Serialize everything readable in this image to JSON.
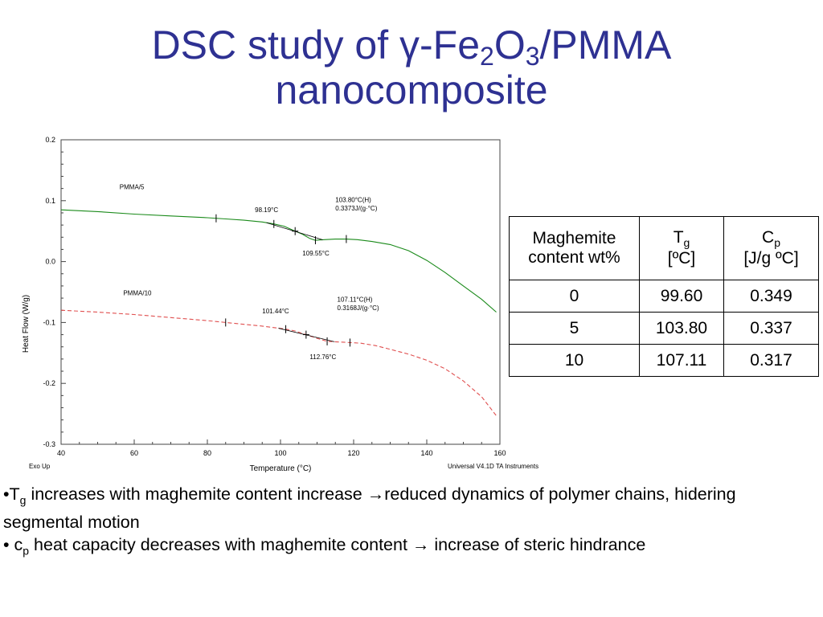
{
  "slide": {
    "title_parts": [
      "DSC study of γ-Fe",
      "2",
      "O",
      "3",
      "/PMMA",
      "nanocomposite"
    ]
  },
  "chart_data": {
    "type": "line",
    "xlabel": "Temperature (°C)",
    "ylabel": "Heat Flow (W/g)",
    "xlim": [
      40,
      160
    ],
    "ylim": [
      -0.3,
      0.2
    ],
    "x_ticks": [
      40,
      60,
      80,
      100,
      120,
      140,
      160
    ],
    "y_ticks": [
      0.2,
      0.1,
      0.0,
      -0.1,
      -0.2,
      -0.3
    ],
    "x_tick_labels": [
      "40",
      "60",
      "80",
      "100",
      "120",
      "140",
      "160"
    ],
    "y_tick_labels": [
      "0.2",
      "0.1",
      "0.0",
      "-0.1",
      "-0.2",
      "-0.3"
    ],
    "grid": false,
    "footer_left": "Exo Up",
    "footer_right": "Universal V4.1D TA Instruments",
    "series": [
      {
        "name": "PMMA/5",
        "color": "#1a8a1a",
        "style": "solid",
        "points": [
          [
            40,
            0.085
          ],
          [
            50,
            0.082
          ],
          [
            60,
            0.078
          ],
          [
            70,
            0.075
          ],
          [
            80,
            0.072
          ],
          [
            85,
            0.07
          ],
          [
            90,
            0.068
          ],
          [
            95,
            0.065
          ],
          [
            98,
            0.062
          ],
          [
            101,
            0.058
          ],
          [
            104,
            0.05
          ],
          [
            106,
            0.045
          ],
          [
            108,
            0.038
          ],
          [
            109.5,
            0.035
          ],
          [
            112,
            0.036
          ],
          [
            115,
            0.037
          ],
          [
            118,
            0.037
          ],
          [
            121,
            0.036
          ],
          [
            125,
            0.033
          ],
          [
            130,
            0.028
          ],
          [
            135,
            0.018
          ],
          [
            140,
            0.002
          ],
          [
            145,
            -0.018
          ],
          [
            150,
            -0.04
          ],
          [
            155,
            -0.062
          ],
          [
            159,
            -0.083
          ]
        ],
        "markers": [
          82.4,
          98.19,
          104,
          109.55,
          118
        ]
      },
      {
        "name": "PMMA/10",
        "color": "#e05050",
        "style": "dashed",
        "points": [
          [
            40,
            -0.08
          ],
          [
            50,
            -0.083
          ],
          [
            60,
            -0.087
          ],
          [
            70,
            -0.092
          ],
          [
            80,
            -0.097
          ],
          [
            85,
            -0.1
          ],
          [
            90,
            -0.103
          ],
          [
            95,
            -0.106
          ],
          [
            101.44,
            -0.111
          ],
          [
            104,
            -0.114
          ],
          [
            107,
            -0.12
          ],
          [
            110,
            -0.126
          ],
          [
            112.76,
            -0.131
          ],
          [
            116,
            -0.132
          ],
          [
            119,
            -0.133
          ],
          [
            122,
            -0.134
          ],
          [
            126,
            -0.138
          ],
          [
            130,
            -0.144
          ],
          [
            135,
            -0.152
          ],
          [
            140,
            -0.162
          ],
          [
            145,
            -0.176
          ],
          [
            150,
            -0.196
          ],
          [
            155,
            -0.222
          ],
          [
            159,
            -0.253
          ]
        ],
        "markers": [
          85,
          101.44,
          107,
          112.76,
          119
        ]
      }
    ],
    "annotations": [
      {
        "text": "PMMA/5",
        "x": 56,
        "y": 0.119
      },
      {
        "text": "98.19°C",
        "x": 93,
        "y": 0.081
      },
      {
        "text": "103.80°C(H)",
        "x": 115,
        "y": 0.098
      },
      {
        "text": "0.3373J/(g·°C)",
        "x": 115,
        "y": 0.084
      },
      {
        "text": "109.55°C",
        "x": 106,
        "y": 0.01
      },
      {
        "text": "PMMA/10",
        "x": 57,
        "y": -0.055
      },
      {
        "text": "101.44°C",
        "x": 95,
        "y": -0.085
      },
      {
        "text": "107.11°C(H)",
        "x": 115.5,
        "y": -0.066
      },
      {
        "text": "0.3168J/(g·°C)",
        "x": 115.5,
        "y": -0.08
      },
      {
        "text": "112.76°C",
        "x": 108,
        "y": -0.16
      }
    ]
  },
  "table": {
    "header": {
      "col1_line1": "Maghemite",
      "col1_line2": "content wt%",
      "col2_main": "T",
      "col2_sub": "g",
      "col2_unit": "[ºC]",
      "col3_main": "C",
      "col3_sub": "p",
      "col3_unit": "[J/g ºC]"
    },
    "rows": [
      {
        "content": "0",
        "tg": "99.60",
        "cp": "0.349"
      },
      {
        "content": "5",
        "tg": "103.80",
        "cp": "0.337"
      },
      {
        "content": "10",
        "tg": "107.11",
        "cp": "0.317"
      }
    ]
  },
  "bullets": [
    {
      "prefix": "•T",
      "sub": "g",
      "text": " increases with maghemite content increase →reduced dynamics of polymer chains, hidering segmental motion"
    },
    {
      "prefix": "• c",
      "sub": "p",
      "text": " heat capacity decreases with maghemite content → increase of steric hindrance"
    }
  ]
}
